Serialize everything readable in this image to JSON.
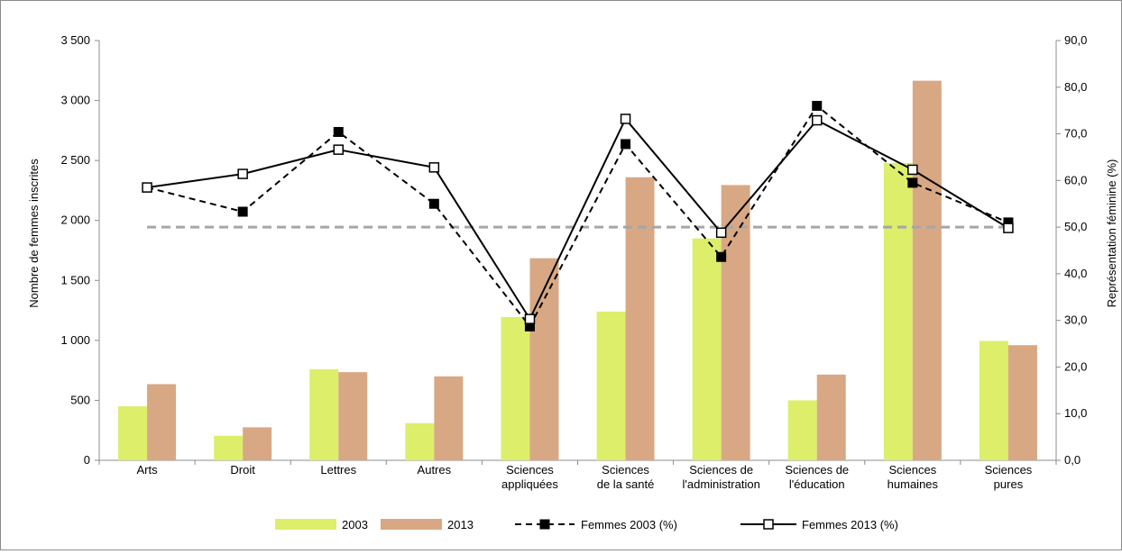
{
  "chart_data": {
    "type": "bar",
    "categories": [
      [
        "Arts"
      ],
      [
        "Droit"
      ],
      [
        "Lettres"
      ],
      [
        "Autres"
      ],
      [
        "Sciences",
        "appliquées"
      ],
      [
        "Sciences",
        "de la santé"
      ],
      [
        "Sciences de",
        "l'administration"
      ],
      [
        "Sciences de",
        "l'éducation"
      ],
      [
        "Sciences",
        "humaines"
      ],
      [
        "Sciences",
        "pures"
      ]
    ],
    "bar_series": [
      {
        "name": "2003",
        "color": "#dcee6a",
        "values": [
          450,
          205,
          760,
          310,
          1195,
          1240,
          1850,
          500,
          2480,
          995
        ]
      },
      {
        "name": "2013",
        "color": "#d8a884",
        "values": [
          635,
          275,
          735,
          700,
          1685,
          2360,
          2295,
          715,
          3165,
          960
        ]
      }
    ],
    "line_series": [
      {
        "name": "Femmes 2003 (%)",
        "style": "dashed",
        "marker": "filled-square",
        "values": [
          58.5,
          53.3,
          70.4,
          55.0,
          28.7,
          67.8,
          43.6,
          76.0,
          59.5,
          51.0
        ]
      },
      {
        "name": "Femmes 2013 (%)",
        "style": "solid",
        "marker": "open-square",
        "values": [
          58.5,
          61.4,
          66.6,
          62.8,
          30.3,
          73.2,
          48.8,
          72.9,
          62.3,
          49.8
        ]
      }
    ],
    "reference_line": {
      "axis": "right",
      "value": 50.0,
      "color": "#a6a6a6",
      "style": "dashed"
    },
    "y_left": {
      "label": "Nombre de femmes inscrites",
      "min": 0,
      "max": 3500,
      "step": 500,
      "ticks": [
        "0",
        "500",
        "1 000",
        "1 500",
        "2 000",
        "2 500",
        "3 000",
        "3 500"
      ]
    },
    "y_right": {
      "label": "Représentation féminine (%)",
      "min": 0,
      "max": 90,
      "step": 10,
      "ticks": [
        "0,0",
        "10,0",
        "20,0",
        "30,0",
        "40,0",
        "50,0",
        "60,0",
        "70,0",
        "80,0",
        "90,0"
      ]
    },
    "legend_position": "bottom",
    "grid": false
  },
  "legend": {
    "items": [
      "2003",
      "2013",
      "Femmes 2003 (%)",
      "Femmes 2013 (%)"
    ]
  }
}
